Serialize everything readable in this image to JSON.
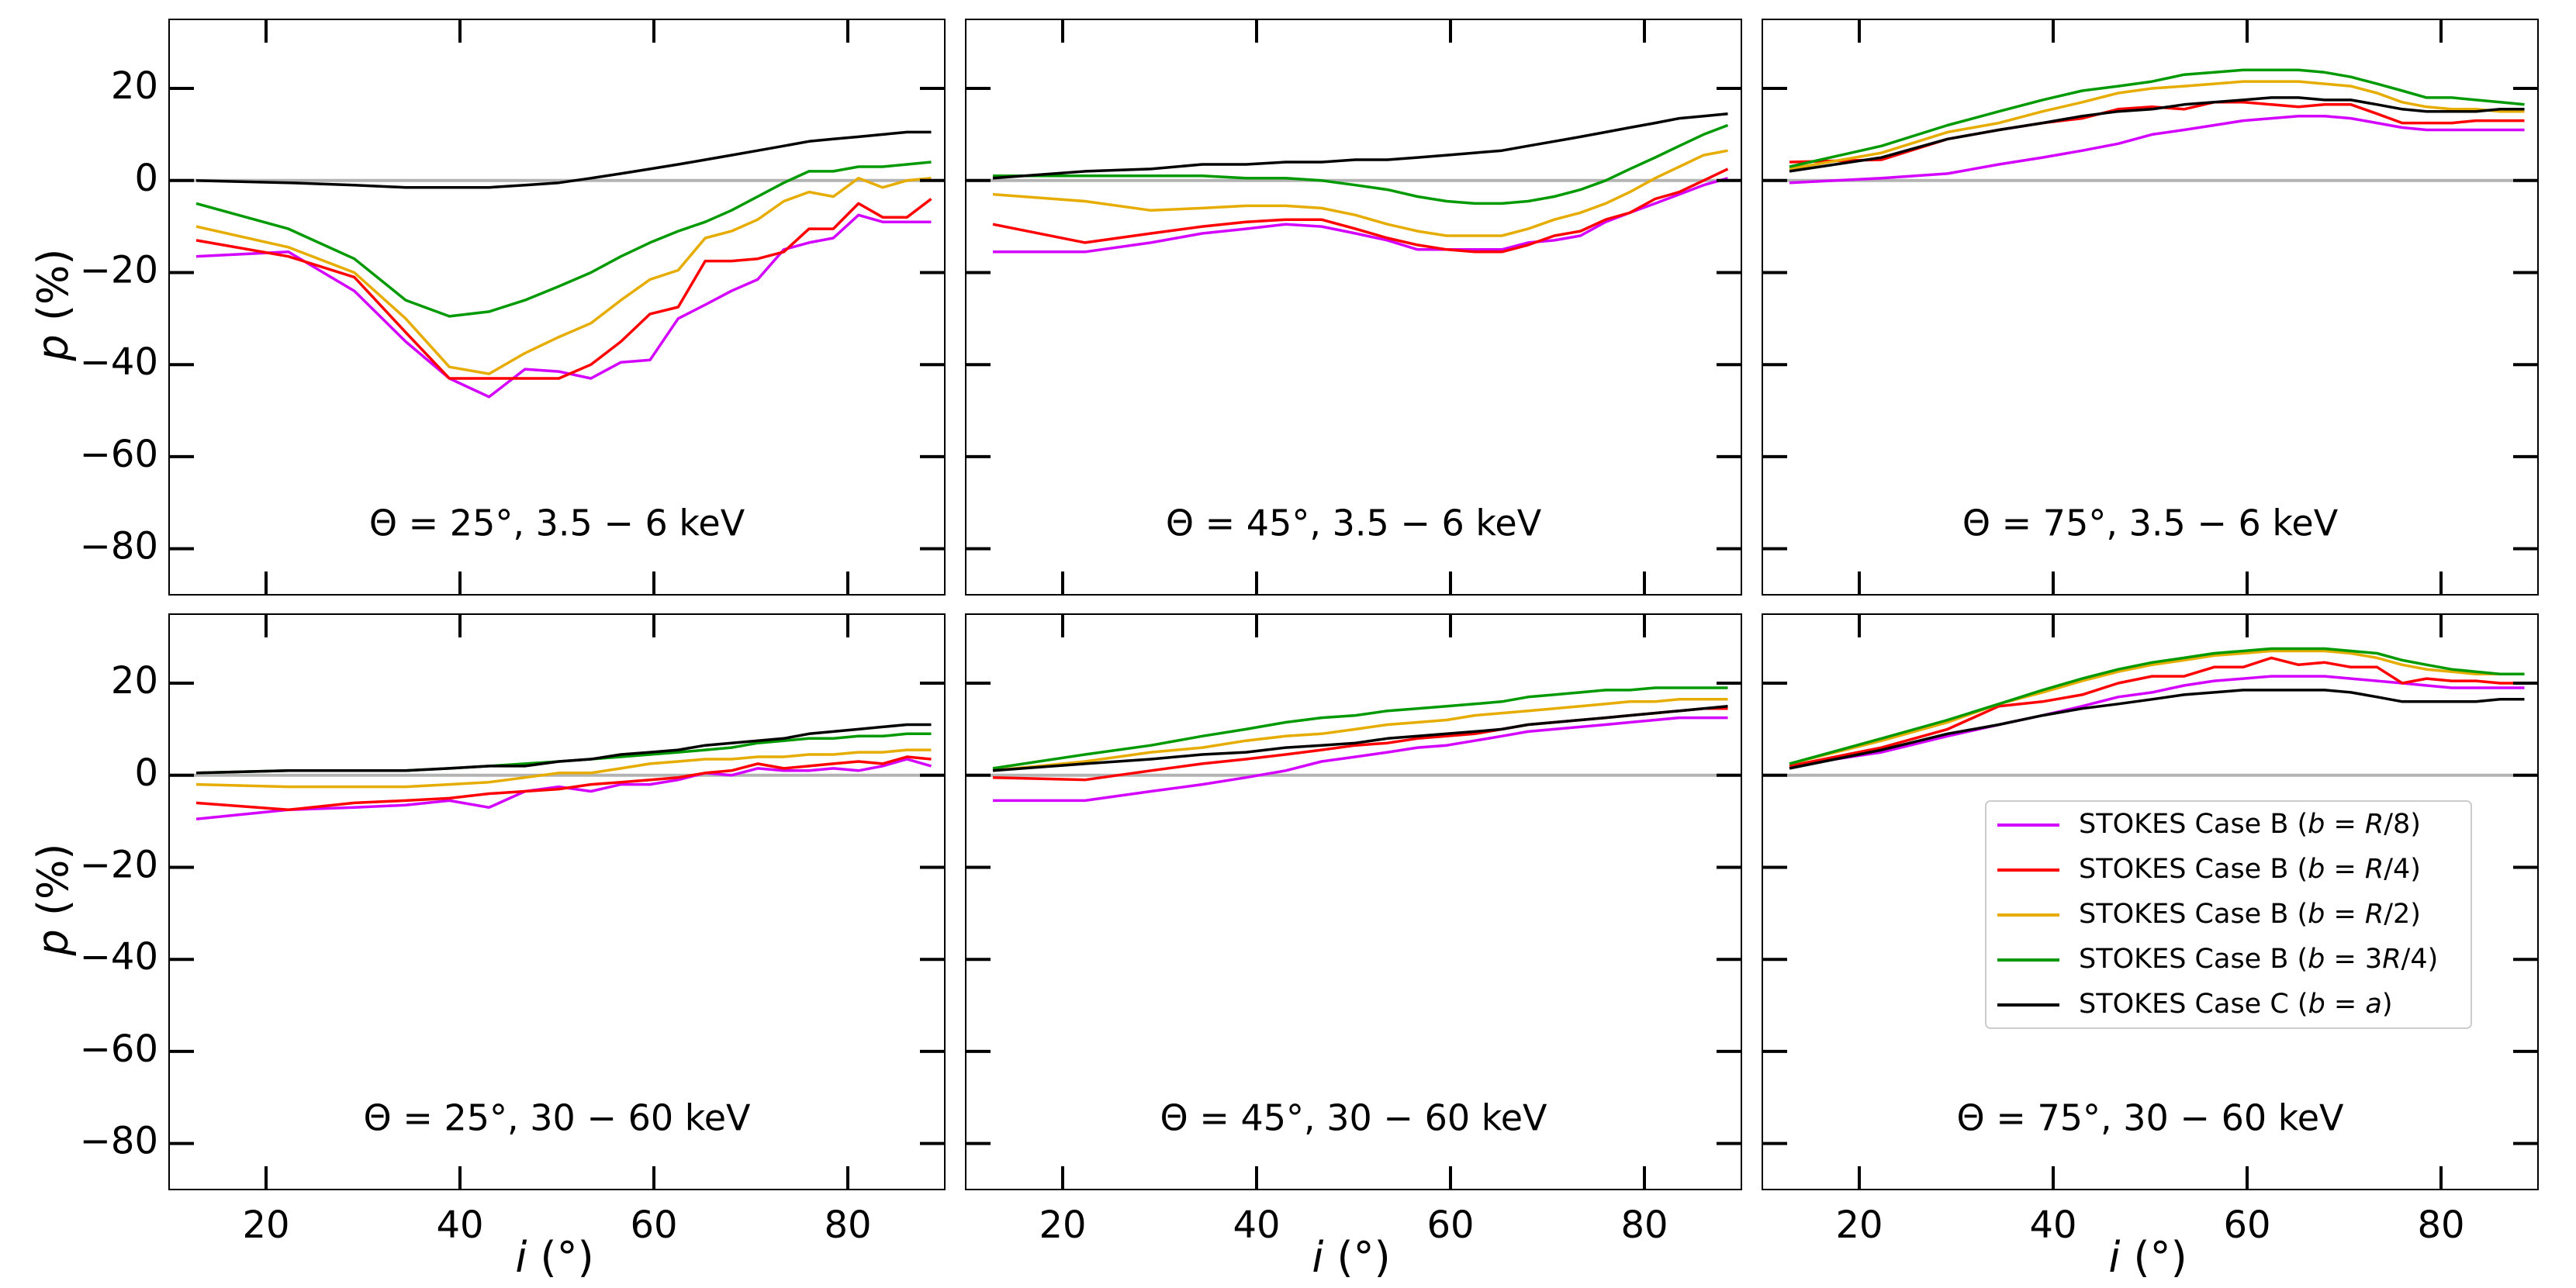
{
  "chart_data": {
    "type": "line",
    "layout": "2x3 grid",
    "xlabel": "i (°)",
    "xlabel_italic": "i",
    "xlabel_unit": " (°)",
    "ylabel": "p (%)",
    "ylabel_italic": "p",
    "ylabel_unit": " (%)",
    "xlim": [
      10,
      90
    ],
    "ylim": [
      -90,
      35
    ],
    "x_ticks": [
      20,
      40,
      60,
      80
    ],
    "y_ticks": [
      20,
      0,
      -20,
      -40,
      -60,
      -80
    ],
    "y_tick_labels": [
      "20",
      "0",
      "−20",
      "−40",
      "−60",
      "−80"
    ],
    "x": [
      12.8,
      22.3,
      29.1,
      34.4,
      38.9,
      43.0,
      46.7,
      50.2,
      53.5,
      56.6,
      59.6,
      62.5,
      65.3,
      68.0,
      70.7,
      73.4,
      76.0,
      78.5,
      81.1,
      83.6,
      86.1,
      88.6
    ],
    "legend_position": "lower-right of bottom-right panel",
    "legend": [
      {
        "pre": "STOKES Case B (",
        "var": "b",
        "mid": " = ",
        "val": "R",
        "post": "/8)",
        "color": "#d400ff"
      },
      {
        "pre": "STOKES Case B (",
        "var": "b",
        "mid": " = ",
        "val": "R",
        "post": "/4)",
        "color": "#ff0000"
      },
      {
        "pre": "STOKES Case B (",
        "var": "b",
        "mid": " = ",
        "val": "R",
        "post": "/2)",
        "color": "#e6ac00"
      },
      {
        "pre": "STOKES Case B (",
        "var": "b",
        "mid": " = 3",
        "val": "R",
        "post": "/4)",
        "color": "#009900"
      },
      {
        "pre": "STOKES Case C (",
        "var": "b",
        "mid": " = ",
        "val": "a",
        "post": ")",
        "color": "#000000"
      }
    ],
    "panels": [
      {
        "label": "Θ = 25°, 3.5 − 6 keV",
        "series": [
          {
            "name": "STOKES Case B (b = R/8)",
            "values": [
              -16.5,
              -15.5,
              -24,
              -35,
              -43,
              -47,
              -41,
              -41.5,
              -43,
              -39.5,
              -39,
              -30,
              -27,
              -24,
              -21.5,
              -15,
              -13.5,
              -12.5,
              -7.5,
              -9,
              -9,
              -9
            ]
          },
          {
            "name": "STOKES Case B (b = R/4)",
            "values": [
              -13,
              -16.5,
              -21,
              -33,
              -43,
              -43,
              -43,
              -43,
              -40,
              -35,
              -29,
              -27.5,
              -17.5,
              -17.5,
              -17,
              -15.5,
              -10.5,
              -10.5,
              -5,
              -8,
              -8,
              -4
            ]
          },
          {
            "name": "STOKES Case B (b = R/2)",
            "values": [
              -10,
              -14.5,
              -20,
              -30,
              -40.5,
              -42,
              -37.5,
              -34,
              -31,
              -26,
              -21.5,
              -19.5,
              -12.5,
              -11,
              -8.5,
              -4.5,
              -2.5,
              -3.5,
              0.5,
              -1.5,
              0,
              0.5
            ]
          },
          {
            "name": "STOKES Case B (b = 3R/4)",
            "values": [
              -5,
              -10.5,
              -17,
              -26,
              -29.5,
              -28.5,
              -26,
              -23,
              -20,
              -16.5,
              -13.5,
              -11,
              -9,
              -6.5,
              -3.5,
              -0.5,
              2,
              2,
              3,
              3,
              3.5,
              4
            ]
          },
          {
            "name": "STOKES Case C (b = a)",
            "values": [
              0,
              -0.5,
              -1,
              -1.5,
              -1.5,
              -1.5,
              -1,
              -0.5,
              0.5,
              1.5,
              2.5,
              3.5,
              4.5,
              5.5,
              6.5,
              7.5,
              8.5,
              9,
              9.5,
              10,
              10.5,
              10.5
            ]
          }
        ]
      },
      {
        "label": "Θ = 45°, 3.5 − 6 keV",
        "series": [
          {
            "name": "STOKES Case B (b = R/8)",
            "values": [
              -15.5,
              -15.5,
              -13.5,
              -11.5,
              -10.5,
              -9.5,
              -10,
              -11.5,
              -13,
              -15,
              -15,
              -15,
              -15,
              -13.5,
              -13,
              -12,
              -9,
              -7,
              -5,
              -3,
              -1,
              0.5
            ]
          },
          {
            "name": "STOKES Case B (b = R/4)",
            "values": [
              -9.5,
              -13.5,
              -11.5,
              -10,
              -9,
              -8.5,
              -8.5,
              -10.5,
              -12.5,
              -14,
              -15,
              -15.5,
              -15.5,
              -14,
              -12,
              -11,
              -8.5,
              -7,
              -4,
              -2.5,
              0,
              2.5
            ]
          },
          {
            "name": "STOKES Case B (b = R/2)",
            "values": [
              -3,
              -4.5,
              -6.5,
              -6,
              -5.5,
              -5.5,
              -6,
              -7.5,
              -9.5,
              -11,
              -12,
              -12,
              -12,
              -10.5,
              -8.5,
              -7,
              -5,
              -2.5,
              0.5,
              3,
              5.5,
              6.5
            ]
          },
          {
            "name": "STOKES Case B (b = 3R/4)",
            "values": [
              1,
              1,
              1,
              1,
              0.5,
              0.5,
              0,
              -1,
              -2,
              -3.5,
              -4.5,
              -5,
              -5,
              -4.5,
              -3.5,
              -2,
              0,
              2.5,
              5,
              7.5,
              10,
              12
            ]
          },
          {
            "name": "STOKES Case C (b = a)",
            "values": [
              0.5,
              2,
              2.5,
              3.5,
              3.5,
              4,
              4,
              4.5,
              4.5,
              5,
              5.5,
              6,
              6.5,
              7.5,
              8.5,
              9.5,
              10.5,
              11.5,
              12.5,
              13.5,
              14,
              14.5
            ]
          }
        ]
      },
      {
        "label": "Θ = 75°, 3.5 − 6 keV",
        "series": [
          {
            "name": "STOKES Case B (b = R/8)",
            "values": [
              -0.5,
              0.5,
              1.5,
              3.5,
              5,
              6.5,
              8,
              10,
              11,
              12,
              13,
              13.5,
              14,
              14,
              13.5,
              12.5,
              11.5,
              11,
              11,
              11,
              11,
              11
            ]
          },
          {
            "name": "STOKES Case B (b = R/4)",
            "values": [
              4,
              4.5,
              9,
              11,
              12.5,
              13.5,
              15.5,
              16,
              15.5,
              17,
              17,
              16.5,
              16,
              16.5,
              16.5,
              14.5,
              12.5,
              12.5,
              12.5,
              13,
              13,
              13
            ]
          },
          {
            "name": "STOKES Case B (b = R/2)",
            "values": [
              2.5,
              6,
              10.5,
              12.5,
              15,
              17,
              19,
              20,
              20.5,
              21,
              21.5,
              21.5,
              21.5,
              21,
              20.5,
              19,
              17,
              16,
              15.5,
              15.5,
              15,
              15
            ]
          },
          {
            "name": "STOKES Case B (b = 3R/4)",
            "values": [
              3,
              7.5,
              12,
              15,
              17.5,
              19.5,
              20.5,
              21.5,
              23,
              23.5,
              24,
              24,
              24,
              23.5,
              22.5,
              21,
              19.5,
              18,
              18,
              17.5,
              17,
              16.5
            ]
          },
          {
            "name": "STOKES Case C (b = a)",
            "values": [
              2,
              5,
              9,
              11,
              12.5,
              14,
              15,
              15.5,
              16.5,
              17,
              17.5,
              18,
              18,
              17.5,
              17.5,
              16.5,
              15.5,
              15,
              15,
              15,
              15.5,
              15.5
            ]
          }
        ]
      },
      {
        "label": "Θ = 25°, 30 − 60 keV",
        "series": [
          {
            "name": "STOKES Case B (b = R/8)",
            "values": [
              -9.5,
              -7.5,
              -7,
              -6.5,
              -5.5,
              -7,
              -3.5,
              -2.5,
              -3.5,
              -2,
              -2,
              -1,
              0.5,
              0,
              1.5,
              1,
              1,
              1.5,
              1,
              2,
              3.5,
              2
            ]
          },
          {
            "name": "STOKES Case B (b = R/4)",
            "values": [
              -6,
              -7.5,
              -6,
              -5.5,
              -5,
              -4,
              -3.5,
              -3,
              -2,
              -1.5,
              -1,
              -0.5,
              0.5,
              1,
              2.5,
              1.5,
              2,
              2.5,
              3,
              2.5,
              4,
              3.5
            ]
          },
          {
            "name": "STOKES Case B (b = R/2)",
            "values": [
              -2,
              -2.5,
              -2.5,
              -2.5,
              -2,
              -1.5,
              -0.5,
              0.5,
              0.5,
              1.5,
              2.5,
              3,
              3.5,
              3.5,
              4,
              4,
              4.5,
              4.5,
              5,
              5,
              5.5,
              5.5
            ]
          },
          {
            "name": "STOKES Case B (b = 3R/4)",
            "values": [
              0.5,
              1,
              1,
              1,
              1.5,
              2,
              2.5,
              3,
              3.5,
              4,
              4.5,
              5,
              5.5,
              6,
              7,
              7.5,
              8,
              8,
              8.5,
              8.5,
              9,
              9
            ]
          },
          {
            "name": "STOKES Case C (b = a)",
            "values": [
              0.5,
              1,
              1,
              1,
              1.5,
              2,
              2,
              3,
              3.5,
              4.5,
              5,
              5.5,
              6.5,
              7,
              7.5,
              8,
              9,
              9.5,
              10,
              10.5,
              11,
              11
            ]
          }
        ]
      },
      {
        "label": "Θ = 45°, 30 − 60 keV",
        "series": [
          {
            "name": "STOKES Case B (b = R/8)",
            "values": [
              -5.5,
              -5.5,
              -3.5,
              -2,
              -0.5,
              1,
              3,
              4,
              5,
              6,
              6.5,
              7.5,
              8.5,
              9.5,
              10,
              10.5,
              11,
              11.5,
              12,
              12.5,
              12.5,
              12.5
            ]
          },
          {
            "name": "STOKES Case B (b = R/4)",
            "values": [
              -0.5,
              -1,
              1,
              2.5,
              3.5,
              4.5,
              5.5,
              6.5,
              7,
              8,
              8.5,
              9,
              10,
              11,
              11.5,
              12,
              12.5,
              13,
              13.5,
              14,
              14.5,
              14.5
            ]
          },
          {
            "name": "STOKES Case B (b = R/2)",
            "values": [
              1,
              3,
              5,
              6,
              7.5,
              8.5,
              9,
              10,
              11,
              11.5,
              12,
              13,
              13.5,
              14,
              14.5,
              15,
              15.5,
              16,
              16,
              16.5,
              16.5,
              16.5
            ]
          },
          {
            "name": "STOKES Case B (b = 3R/4)",
            "values": [
              1.5,
              4.5,
              6.5,
              8.5,
              10,
              11.5,
              12.5,
              13,
              14,
              14.5,
              15,
              15.5,
              16,
              17,
              17.5,
              18,
              18.5,
              18.5,
              19,
              19,
              19,
              19
            ]
          },
          {
            "name": "STOKES Case C (b = a)",
            "values": [
              1,
              2.5,
              3.5,
              4.5,
              5,
              6,
              6.5,
              7,
              8,
              8.5,
              9,
              9.5,
              10,
              11,
              11.5,
              12,
              12.5,
              13,
              13.5,
              14,
              14.5,
              15
            ]
          }
        ]
      },
      {
        "label": "Θ = 75°, 30 − 60 keV",
        "series": [
          {
            "name": "STOKES Case B (b = R/8)",
            "values": [
              2,
              5,
              8.5,
              11,
              13,
              15,
              17,
              18,
              19.5,
              20.5,
              21,
              21.5,
              21.5,
              21.5,
              21,
              20.5,
              20,
              19.5,
              19,
              19,
              19,
              19
            ]
          },
          {
            "name": "STOKES Case B (b = R/4)",
            "values": [
              2,
              6,
              10,
              15,
              16,
              17.5,
              20,
              21.5,
              21.5,
              23.5,
              23.5,
              25.5,
              24,
              24.5,
              23.5,
              23.5,
              20,
              21,
              20.5,
              20.5,
              20,
              20
            ]
          },
          {
            "name": "STOKES Case B (b = R/2)",
            "values": [
              2.5,
              7.5,
              11.5,
              15.5,
              18,
              20.5,
              22.5,
              24,
              25,
              26,
              26.5,
              27,
              27,
              27,
              26.5,
              25.5,
              24,
              23,
              22.5,
              22,
              22,
              22
            ]
          },
          {
            "name": "STOKES Case B (b = 3R/4)",
            "values": [
              2.5,
              8,
              12,
              15.5,
              18.5,
              21,
              23,
              24.5,
              25.5,
              26.5,
              27,
              27.5,
              27.5,
              27.5,
              27,
              26.5,
              25,
              24,
              23,
              22.5,
              22,
              22
            ]
          },
          {
            "name": "STOKES Case C (b = a)",
            "values": [
              1.5,
              5.5,
              9,
              11,
              13,
              14.5,
              15.5,
              16.5,
              17.5,
              18,
              18.5,
              18.5,
              18.5,
              18.5,
              18,
              17,
              16,
              16,
              16,
              16,
              16.5,
              16.5
            ]
          }
        ]
      }
    ]
  }
}
